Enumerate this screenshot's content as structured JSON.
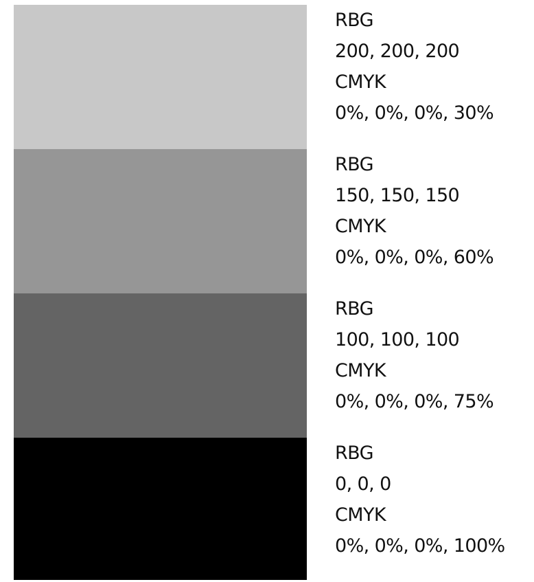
{
  "swatches": [
    {
      "color": "#c8c8c8",
      "rgb_label": "RBG",
      "rgb_value": "200, 200, 200",
      "cmyk_label": "CMYK",
      "cmyk_value": "0%, 0%, 0%, 30%"
    },
    {
      "color": "#969696",
      "rgb_label": "RBG",
      "rgb_value": "150, 150, 150",
      "cmyk_label": "CMYK",
      "cmyk_value": "0%, 0%, 0%, 60%"
    },
    {
      "color": "#646464",
      "rgb_label": "RBG",
      "rgb_value": "100, 100, 100",
      "cmyk_label": "CMYK",
      "cmyk_value": "0%, 0%, 0%, 75%"
    },
    {
      "color": "#000000",
      "rgb_label": "RBG",
      "rgb_value": "0, 0, 0",
      "cmyk_label": "CMYK",
      "cmyk_value": "0%, 0%, 0%, 100%"
    }
  ]
}
